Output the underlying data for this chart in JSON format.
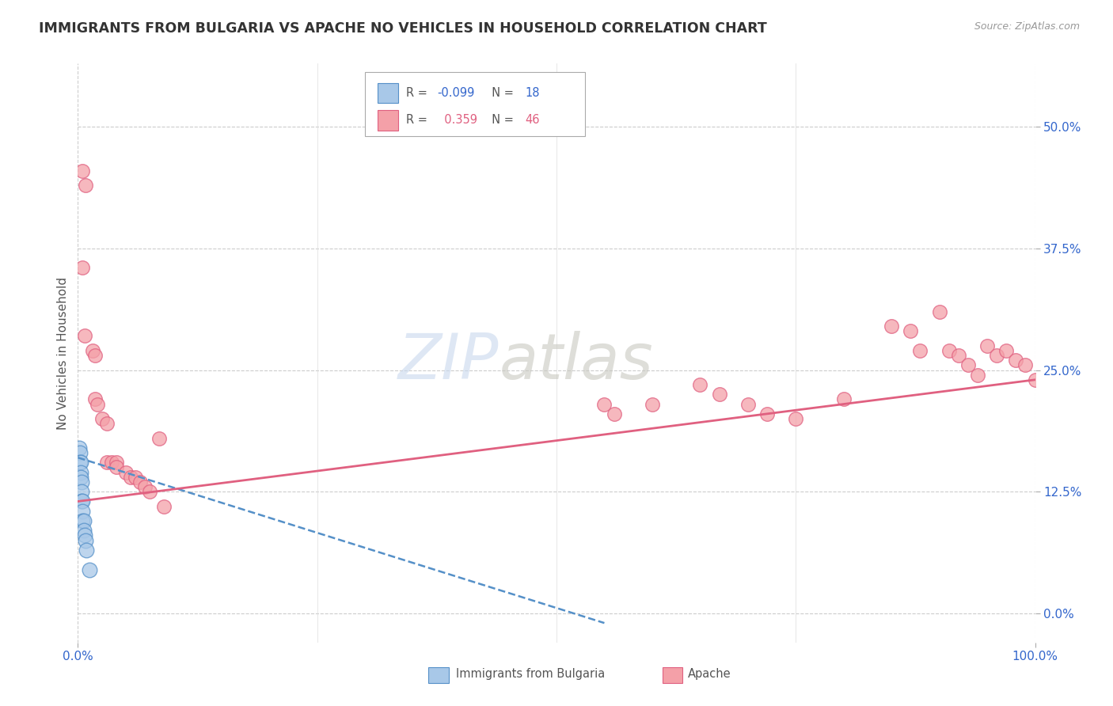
{
  "title": "IMMIGRANTS FROM BULGARIA VS APACHE NO VEHICLES IN HOUSEHOLD CORRELATION CHART",
  "source": "Source: ZipAtlas.com",
  "ylabel": "No Vehicles in Household",
  "ytick_values": [
    0.0,
    0.125,
    0.25,
    0.375,
    0.5
  ],
  "xlim": [
    0,
    1.0
  ],
  "ylim": [
    -0.03,
    0.565
  ],
  "watermark_zip": "ZIP",
  "watermark_atlas": "atlas",
  "blue_color": "#a8c8e8",
  "pink_color": "#f4a0a8",
  "blue_edge": "#5590c8",
  "pink_edge": "#e06080",
  "trend_blue": "#5590c8",
  "trend_pink": "#e06080",
  "bg_color": "#ffffff",
  "grid_color": "#cccccc",
  "axis_label_color": "#3366cc",
  "blue_scatter": [
    [
      0.001,
      0.17
    ],
    [
      0.002,
      0.165
    ],
    [
      0.002,
      0.155
    ],
    [
      0.003,
      0.155
    ],
    [
      0.003,
      0.145
    ],
    [
      0.003,
      0.14
    ],
    [
      0.004,
      0.135
    ],
    [
      0.004,
      0.125
    ],
    [
      0.004,
      0.115
    ],
    [
      0.005,
      0.115
    ],
    [
      0.005,
      0.105
    ],
    [
      0.005,
      0.095
    ],
    [
      0.006,
      0.095
    ],
    [
      0.006,
      0.085
    ],
    [
      0.007,
      0.08
    ],
    [
      0.008,
      0.075
    ],
    [
      0.009,
      0.065
    ],
    [
      0.012,
      0.045
    ]
  ],
  "pink_scatter": [
    [
      0.005,
      0.455
    ],
    [
      0.008,
      0.44
    ],
    [
      0.005,
      0.355
    ],
    [
      0.007,
      0.285
    ],
    [
      0.015,
      0.27
    ],
    [
      0.018,
      0.265
    ],
    [
      0.018,
      0.22
    ],
    [
      0.02,
      0.215
    ],
    [
      0.025,
      0.2
    ],
    [
      0.03,
      0.195
    ],
    [
      0.03,
      0.155
    ],
    [
      0.035,
      0.155
    ],
    [
      0.04,
      0.155
    ],
    [
      0.04,
      0.15
    ],
    [
      0.05,
      0.145
    ],
    [
      0.055,
      0.14
    ],
    [
      0.06,
      0.14
    ],
    [
      0.065,
      0.135
    ],
    [
      0.07,
      0.13
    ],
    [
      0.075,
      0.125
    ],
    [
      0.085,
      0.18
    ],
    [
      0.09,
      0.11
    ],
    [
      0.55,
      0.215
    ],
    [
      0.56,
      0.205
    ],
    [
      0.6,
      0.215
    ],
    [
      0.65,
      0.235
    ],
    [
      0.67,
      0.225
    ],
    [
      0.7,
      0.215
    ],
    [
      0.72,
      0.205
    ],
    [
      0.75,
      0.2
    ],
    [
      0.8,
      0.22
    ],
    [
      0.85,
      0.295
    ],
    [
      0.87,
      0.29
    ],
    [
      0.88,
      0.27
    ],
    [
      0.9,
      0.31
    ],
    [
      0.91,
      0.27
    ],
    [
      0.92,
      0.265
    ],
    [
      0.93,
      0.255
    ],
    [
      0.94,
      0.245
    ],
    [
      0.95,
      0.275
    ],
    [
      0.96,
      0.265
    ],
    [
      0.97,
      0.27
    ],
    [
      0.98,
      0.26
    ],
    [
      0.99,
      0.255
    ],
    [
      1.0,
      0.24
    ]
  ],
  "blue_trend_x": [
    0.0,
    0.55
  ],
  "blue_trend_y": [
    0.16,
    -0.01
  ],
  "pink_trend_x": [
    0.0,
    1.0
  ],
  "pink_trend_y": [
    0.115,
    0.24
  ]
}
